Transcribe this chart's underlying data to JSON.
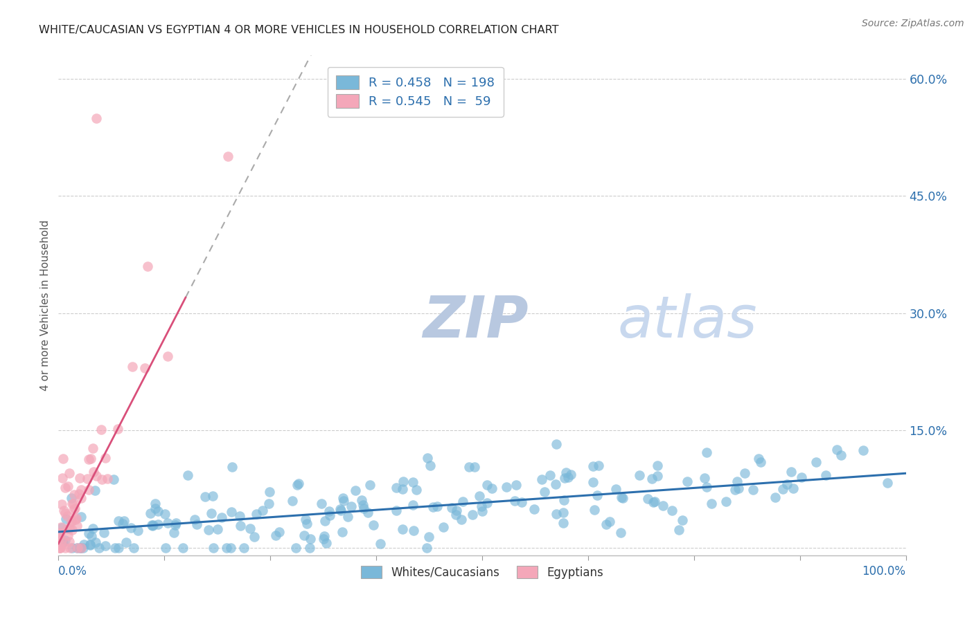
{
  "title": "WHITE/CAUCASIAN VS EGYPTIAN 4 OR MORE VEHICLES IN HOUSEHOLD CORRELATION CHART",
  "source": "Source: ZipAtlas.com",
  "ylabel": "4 or more Vehicles in Household",
  "yticks_labels": [
    "",
    "15.0%",
    "30.0%",
    "45.0%",
    "60.0%"
  ],
  "ytick_vals": [
    0,
    15,
    30,
    45,
    60
  ],
  "blue_R": 0.458,
  "blue_N": 198,
  "pink_R": 0.545,
  "pink_N": 59,
  "blue_color": "#7ab8d9",
  "pink_color": "#f4a7b9",
  "blue_line_color": "#2c6fad",
  "pink_line_color": "#d94f7a",
  "watermark_zip": "ZIP",
  "watermark_atlas": "atlas",
  "watermark_color": "#c8d8ee",
  "legend_label_blue": "Whites/Caucasians",
  "legend_label_pink": "Egyptians",
  "figsize": [
    14.06,
    8.92
  ],
  "dpi": 100
}
